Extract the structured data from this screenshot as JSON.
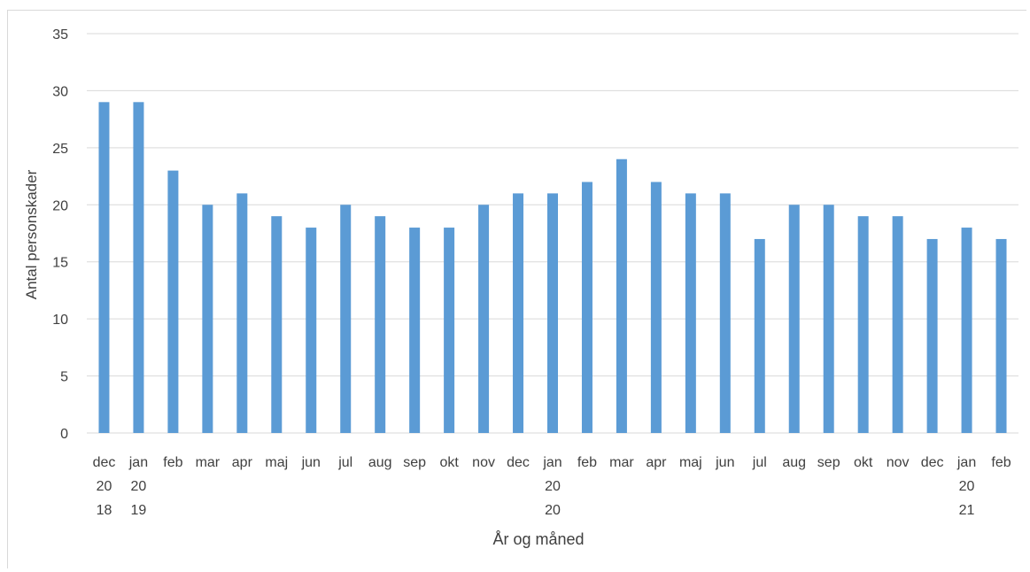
{
  "chart_data": {
    "type": "bar",
    "categories": [
      [
        "dec",
        "20",
        "18"
      ],
      [
        "jan",
        "20",
        "19"
      ],
      [
        "feb"
      ],
      [
        "mar"
      ],
      [
        "apr"
      ],
      [
        "maj"
      ],
      [
        "jun"
      ],
      [
        "jul"
      ],
      [
        "aug"
      ],
      [
        "sep"
      ],
      [
        "okt"
      ],
      [
        "nov"
      ],
      [
        "dec"
      ],
      [
        "jan",
        "20",
        "20"
      ],
      [
        "feb"
      ],
      [
        "mar"
      ],
      [
        "apr"
      ],
      [
        "maj"
      ],
      [
        "jun"
      ],
      [
        "jul"
      ],
      [
        "aug"
      ],
      [
        "sep"
      ],
      [
        "okt"
      ],
      [
        "nov"
      ],
      [
        "dec"
      ],
      [
        "jan",
        "20",
        "21"
      ],
      [
        "feb"
      ]
    ],
    "values": [
      29,
      29,
      23,
      20,
      21,
      19,
      18,
      20,
      19,
      18,
      18,
      20,
      21,
      21,
      22,
      24,
      22,
      21,
      21,
      17,
      20,
      20,
      19,
      19,
      17,
      18,
      17
    ],
    "ylabel": "Antal personskader",
    "xlabel": "År og måned",
    "ylim": [
      0,
      35
    ],
    "yticks": [
      0,
      5,
      10,
      15,
      20,
      25,
      30,
      35
    ],
    "grid": true,
    "legend": "none",
    "colors": {
      "bar": "#5b9bd5",
      "grid": "#d9d9d9",
      "text": "#404040"
    }
  }
}
